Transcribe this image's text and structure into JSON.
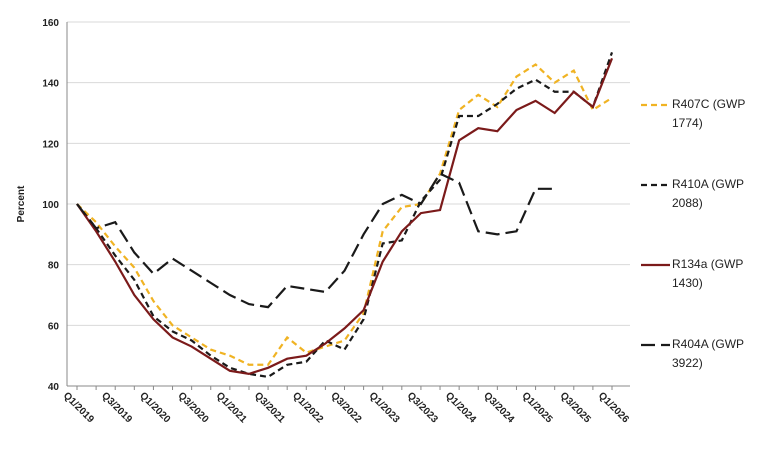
{
  "chart_data": {
    "type": "line",
    "y_label": "Percent",
    "categories": [
      "Q1/2019",
      null,
      "Q3/2019",
      null,
      "Q1/2020",
      null,
      "Q3/2020",
      null,
      "Q1/2021",
      null,
      "Q3/2021",
      null,
      "Q1/2022",
      null,
      "Q3/2022",
      null,
      "Q1/2023",
      null,
      "Q3/2023",
      null,
      "Q1/2024",
      null,
      "Q3/2024",
      null,
      "Q1/2025",
      null,
      "Q3/2025",
      null,
      "Q1/2026"
    ],
    "series": [
      {
        "name": "R407C (GWP 1774)",
        "color": "#f0b323",
        "dash": "short",
        "values": [
          100,
          94,
          86,
          79,
          68,
          60,
          56,
          52,
          50,
          47,
          47,
          56,
          51,
          53,
          55,
          64,
          91,
          99,
          100,
          110,
          131,
          136,
          132,
          142,
          146,
          140,
          144,
          131,
          135
        ]
      },
      {
        "name": "R410A (GWP 2088)",
        "color": "#1a1a1a",
        "dash": "short",
        "values": [
          100,
          92,
          83,
          75,
          63,
          58,
          55,
          50,
          46,
          44,
          43,
          47,
          48,
          55,
          52,
          62,
          87,
          88,
          101,
          108,
          129,
          129,
          133,
          138,
          141,
          137,
          137,
          132,
          150
        ]
      },
      {
        "name": "R134a (GWP 1430)",
        "color": "#7b1a1a",
        "dash": "solid",
        "values": [
          100,
          91,
          81,
          70,
          62,
          56,
          53,
          49,
          45,
          44,
          46,
          49,
          50,
          54,
          59,
          65,
          81,
          91,
          97,
          98,
          121,
          125,
          124,
          131,
          134,
          130,
          137,
          132,
          148
        ]
      },
      {
        "name": "R404A (GWP 3922)",
        "color": "#1a1a1a",
        "dash": "long",
        "values": [
          100,
          92,
          94,
          84,
          77,
          82,
          78,
          74,
          70,
          67,
          66,
          73,
          72,
          71,
          78,
          90,
          100,
          103,
          100,
          110,
          107,
          91,
          90,
          91,
          105,
          105,
          null,
          null,
          null
        ]
      }
    ],
    "ylim": [
      40,
      160
    ],
    "yticks": [
      40,
      60,
      80,
      100,
      120,
      140,
      160
    ],
    "grid": true
  }
}
